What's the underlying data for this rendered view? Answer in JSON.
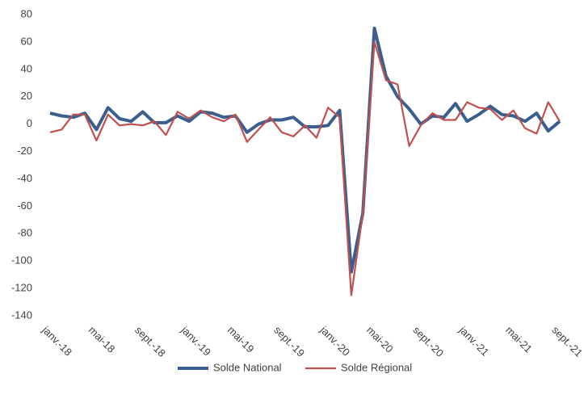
{
  "chart_data": {
    "type": "line",
    "categories": [
      "janv.-18",
      null,
      null,
      null,
      "mai-18",
      null,
      null,
      null,
      "sept.-18",
      null,
      null,
      null,
      "janv.-19",
      null,
      null,
      null,
      "mai-19",
      null,
      null,
      null,
      "sept.-19",
      null,
      null,
      null,
      "janv.-20",
      null,
      null,
      null,
      "mai-20",
      null,
      null,
      null,
      "sept.-20",
      null,
      null,
      null,
      "janv.-21",
      null,
      null,
      null,
      "mai-21",
      null,
      null,
      null,
      "sept.-21"
    ],
    "series": [
      {
        "name": "Solde National",
        "color": "#3a5f8f",
        "values": [
          8,
          6,
          5,
          8,
          -4,
          12,
          4,
          2,
          9,
          1,
          1,
          6,
          2,
          9,
          8,
          5,
          6,
          -6,
          0,
          3,
          3,
          5,
          -2,
          -2,
          -1,
          10,
          -108,
          -65,
          70,
          35,
          20,
          11,
          0,
          6,
          5,
          15,
          2,
          7,
          13,
          7,
          6,
          2,
          8,
          -5,
          2
        ]
      },
      {
        "name": "Solde Régional",
        "color": "#c0504d",
        "values": [
          -6,
          -4,
          7,
          7,
          -12,
          7,
          -1,
          0,
          -1,
          2,
          -8,
          9,
          4,
          10,
          5,
          2,
          7,
          -13,
          -4,
          5,
          -6,
          -9,
          -1,
          -10,
          12,
          5,
          -125,
          -65,
          60,
          32,
          29,
          -16,
          -1,
          8,
          3,
          3,
          16,
          12,
          11,
          3,
          10,
          -3,
          -7,
          16,
          2
        ]
      }
    ],
    "ylim": [
      -140,
      80
    ],
    "yticks": [
      -140,
      -120,
      -100,
      -80,
      -60,
      -40,
      -20,
      0,
      20,
      40,
      60,
      80
    ],
    "legend": "bottom"
  }
}
